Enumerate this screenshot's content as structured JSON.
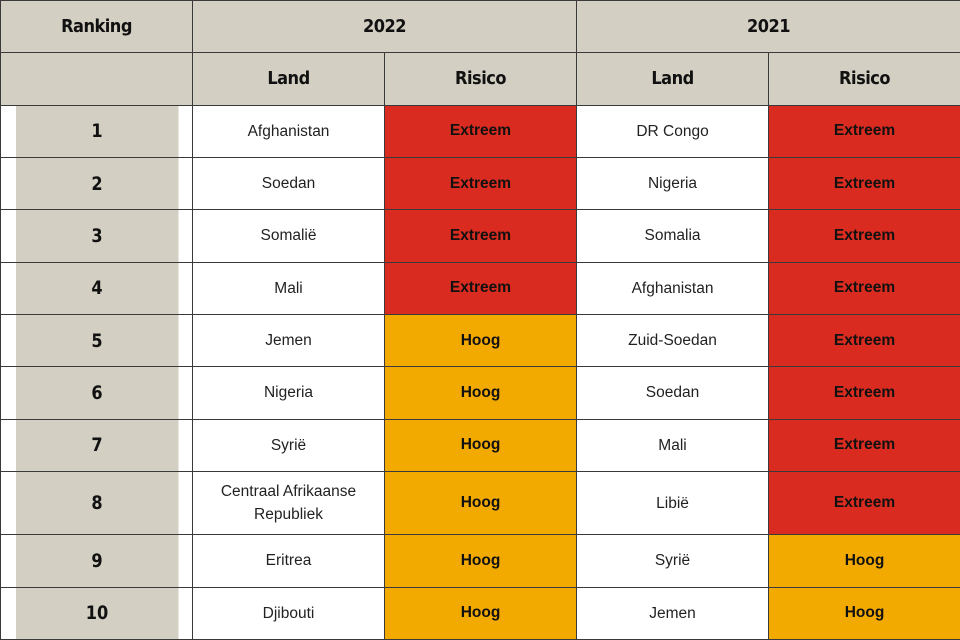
{
  "header": {
    "ranking": "Ranking",
    "year_a": "2022",
    "year_b": "2021",
    "land": "Land",
    "risico": "Risico"
  },
  "colors": {
    "header_bg": "#d3cfc2",
    "Extreem": "#d92b1f",
    "Hoog": "#f2a900"
  },
  "rows": [
    {
      "rank": "1",
      "land_2022": "Afghanistan",
      "risk_2022": "Extreem",
      "land_2021": "DR Congo",
      "risk_2021": "Extreem"
    },
    {
      "rank": "2",
      "land_2022": "Soedan",
      "risk_2022": "Extreem",
      "land_2021": "Nigeria",
      "risk_2021": "Extreem"
    },
    {
      "rank": "3",
      "land_2022": "Somalië",
      "risk_2022": "Extreem",
      "land_2021": "Somalia",
      "risk_2021": "Extreem"
    },
    {
      "rank": "4",
      "land_2022": "Mali",
      "risk_2022": "Extreem",
      "land_2021": "Afghanistan",
      "risk_2021": "Extreem"
    },
    {
      "rank": "5",
      "land_2022": "Jemen",
      "risk_2022": "Hoog",
      "land_2021": "Zuid-Soedan",
      "risk_2021": "Extreem"
    },
    {
      "rank": "6",
      "land_2022": "Nigeria",
      "risk_2022": "Hoog",
      "land_2021": "Soedan",
      "risk_2021": "Extreem"
    },
    {
      "rank": "7",
      "land_2022": "Syrië",
      "risk_2022": "Hoog",
      "land_2021": "Mali",
      "risk_2021": "Extreem"
    },
    {
      "rank": "8",
      "land_2022": "Centraal Afrikaanse Republiek",
      "risk_2022": "Hoog",
      "land_2021": "Libië",
      "risk_2021": "Extreem"
    },
    {
      "rank": "9",
      "land_2022": "Eritrea",
      "risk_2022": "Hoog",
      "land_2021": "Syrië",
      "risk_2021": "Hoog"
    },
    {
      "rank": "10",
      "land_2022": "Djibouti",
      "risk_2022": "Hoog",
      "land_2021": "Jemen",
      "risk_2021": "Hoog"
    }
  ]
}
